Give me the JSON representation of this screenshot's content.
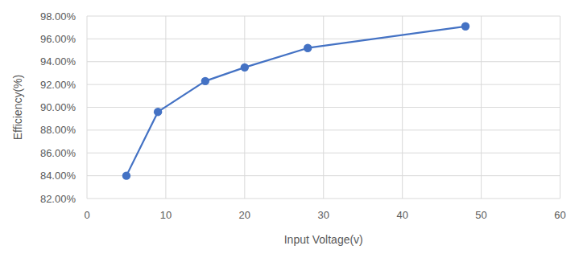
{
  "chart_data": {
    "type": "line",
    "x_label": "Input Voltage(v)",
    "y_label": "Efficiency(%)",
    "x": [
      5,
      9,
      15,
      20,
      28,
      48
    ],
    "values": [
      84.0,
      89.6,
      92.3,
      93.5,
      95.2,
      97.1
    ],
    "color": "#4472c4",
    "marker": "circle",
    "line_style": "solid",
    "xlim": [
      0,
      60
    ],
    "xticks": [
      0,
      10,
      20,
      30,
      40,
      50,
      60
    ],
    "ylim": [
      82,
      98
    ],
    "yticks": [
      {
        "value": 82,
        "label": "82.00%"
      },
      {
        "value": 84,
        "label": "84.00%"
      },
      {
        "value": 86,
        "label": "86.00%"
      },
      {
        "value": 88,
        "label": "88.00%"
      },
      {
        "value": 90,
        "label": "90.00%"
      },
      {
        "value": 92,
        "label": "92.00%"
      },
      {
        "value": 94,
        "label": "94.00%"
      },
      {
        "value": 96,
        "label": "96.00%"
      },
      {
        "value": 98,
        "label": "98.00%"
      }
    ],
    "grid": true
  }
}
